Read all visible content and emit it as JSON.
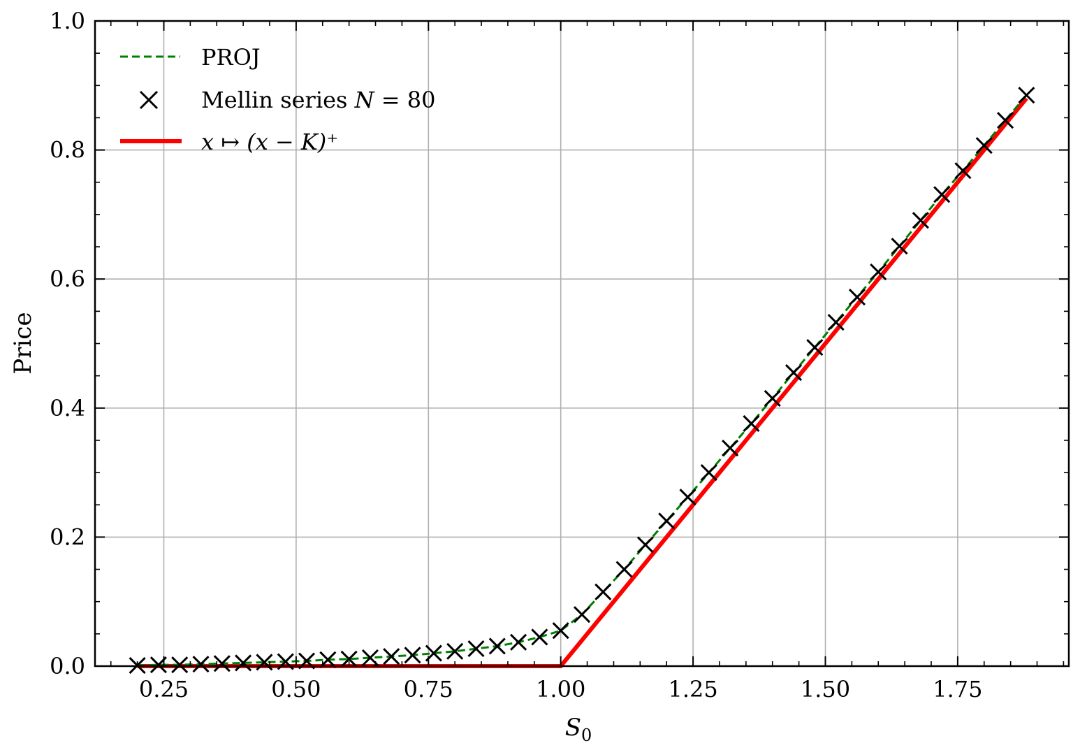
{
  "chart_data": {
    "type": "line",
    "title": "",
    "xlabel": "S",
    "xlabel_sub": "0",
    "ylabel": "Price",
    "xlim": [
      0.12,
      1.96
    ],
    "ylim": [
      0.0,
      1.0
    ],
    "grid": true,
    "legend_placement": "top-left",
    "xticks": [
      0.25,
      0.5,
      0.75,
      1.0,
      1.25,
      1.5,
      1.75
    ],
    "xtick_labels": [
      "0.25",
      "0.50",
      "0.75",
      "1.00",
      "1.25",
      "1.50",
      "1.75"
    ],
    "yticks": [
      0.0,
      0.2,
      0.4,
      0.6,
      0.8,
      1.0
    ],
    "ytick_labels": [
      "0.0",
      "0.2",
      "0.4",
      "0.6",
      "0.8",
      "1.0"
    ],
    "legend": {
      "proj": "PROJ",
      "mellin_prefix": "Mellin series ",
      "mellin_var": "N",
      "mellin_eq": " = 80",
      "payoff": "x ↦ (x − K)⁺"
    },
    "colors": {
      "proj": "#008000",
      "mellin": "#000000",
      "payoff": "#ff0000",
      "grid": "#b0b0b0"
    },
    "series": [
      {
        "name": "PROJ",
        "style": "dashed",
        "x": [
          0.2,
          0.24,
          0.28,
          0.32,
          0.36,
          0.4,
          0.44,
          0.48,
          0.52,
          0.56,
          0.6,
          0.64,
          0.68,
          0.72,
          0.76,
          0.8,
          0.84,
          0.88,
          0.92,
          0.96,
          1.0,
          1.04,
          1.08,
          1.12,
          1.16,
          1.2,
          1.24,
          1.28,
          1.32,
          1.36,
          1.4,
          1.44,
          1.48,
          1.52,
          1.56,
          1.6,
          1.64,
          1.68,
          1.72,
          1.76,
          1.8,
          1.84,
          1.88
        ],
        "y": [
          0.001,
          0.002,
          0.002,
          0.003,
          0.004,
          0.005,
          0.006,
          0.007,
          0.008,
          0.01,
          0.011,
          0.013,
          0.015,
          0.017,
          0.02,
          0.023,
          0.027,
          0.031,
          0.037,
          0.045,
          0.055,
          0.08,
          0.115,
          0.15,
          0.188,
          0.225,
          0.262,
          0.3,
          0.338,
          0.376,
          0.415,
          0.455,
          0.494,
          0.533,
          0.572,
          0.611,
          0.651,
          0.691,
          0.731,
          0.768,
          0.807,
          0.846,
          0.885
        ]
      },
      {
        "name": "Mellin series N = 80",
        "style": "markers-x",
        "x": [
          0.2,
          0.24,
          0.28,
          0.32,
          0.36,
          0.4,
          0.44,
          0.48,
          0.52,
          0.56,
          0.6,
          0.64,
          0.68,
          0.72,
          0.76,
          0.8,
          0.84,
          0.88,
          0.92,
          0.96,
          1.0,
          1.04,
          1.08,
          1.12,
          1.16,
          1.2,
          1.24,
          1.28,
          1.32,
          1.36,
          1.4,
          1.44,
          1.48,
          1.52,
          1.56,
          1.6,
          1.64,
          1.68,
          1.72,
          1.76,
          1.8,
          1.84,
          1.88
        ],
        "y": [
          0.001,
          0.002,
          0.002,
          0.003,
          0.004,
          0.005,
          0.006,
          0.007,
          0.008,
          0.01,
          0.011,
          0.013,
          0.015,
          0.017,
          0.02,
          0.023,
          0.027,
          0.031,
          0.037,
          0.045,
          0.055,
          0.08,
          0.115,
          0.15,
          0.188,
          0.225,
          0.262,
          0.3,
          0.338,
          0.376,
          0.415,
          0.455,
          0.494,
          0.533,
          0.572,
          0.611,
          0.651,
          0.691,
          0.731,
          0.768,
          0.807,
          0.846,
          0.885
        ]
      },
      {
        "name": "x ↦ (x − K)⁺",
        "style": "solid",
        "x": [
          0.2,
          1.0,
          1.88
        ],
        "y": [
          0.0,
          0.0,
          0.88
        ]
      }
    ]
  }
}
